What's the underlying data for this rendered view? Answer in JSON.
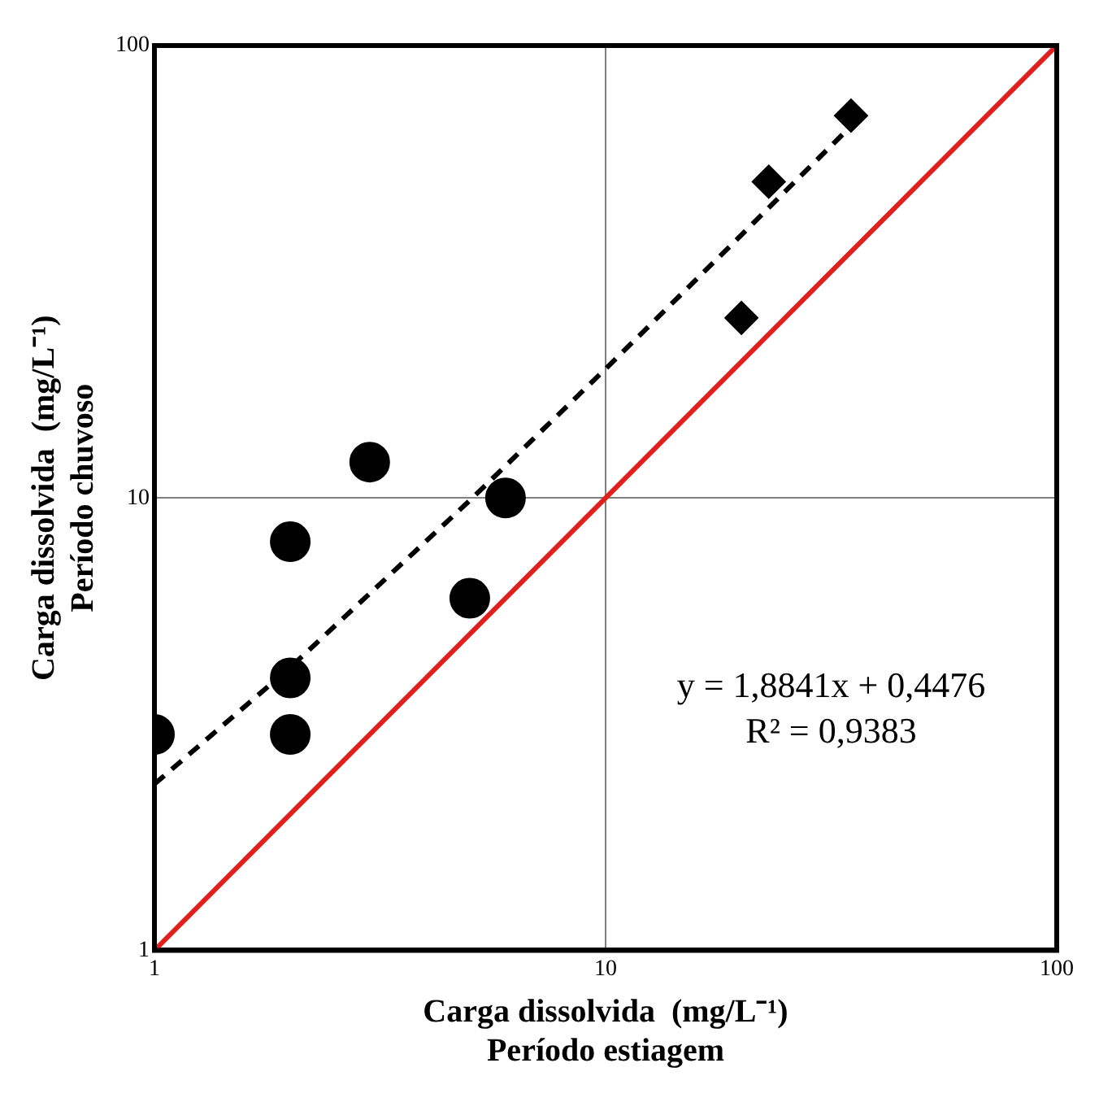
{
  "chart_data": {
    "type": "scatter",
    "xlabel": "Carga dissolvida  (mg/L⁻¹)\nPeríodo estiagem",
    "ylabel": "Carga dissolvida  (mg/L⁻¹)\nPeríodo chuvoso",
    "log": "xy",
    "xlim": [
      1,
      100
    ],
    "ylim": [
      1,
      100
    ],
    "xticks": [
      1,
      10,
      100
    ],
    "yticks": [
      1,
      10,
      100
    ],
    "grid": true,
    "legend": false,
    "series": [
      {
        "marker": "circle",
        "color": "#000000",
        "x": [
          1,
          2,
          2,
          2,
          3,
          5,
          6
        ],
        "values": [
          3,
          8,
          4,
          3,
          12,
          6,
          10
        ]
      },
      {
        "marker": "diamond",
        "color": "#000000",
        "x": [
          20,
          23,
          35
        ],
        "values": [
          25,
          50,
          70
        ]
      },
      {
        "type": "line",
        "marker": "none",
        "line_style": "dashed",
        "color": "#000000",
        "x": [
          1,
          2,
          5,
          10,
          20,
          35
        ],
        "values": [
          2.33,
          4.22,
          9.87,
          19.29,
          38.13,
          66.39
        ]
      },
      {
        "type": "line",
        "marker": "none",
        "line_style": "solid",
        "color": "#e0201c",
        "x": [
          1,
          100
        ],
        "values": [
          1,
          100
        ]
      }
    ],
    "annotations": [
      "y = 1,8841x + 0,4476",
      "R² = 0,9383"
    ]
  }
}
